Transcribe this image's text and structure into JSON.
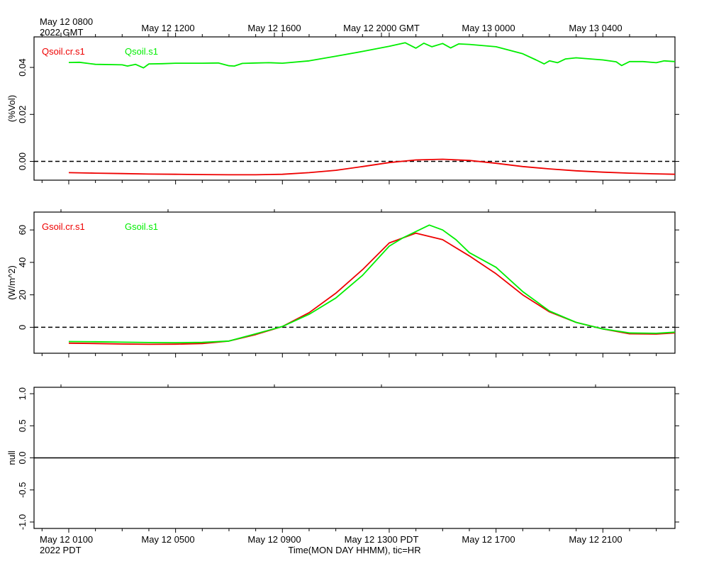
{
  "top_axis": {
    "first_label": "May 12 0800",
    "first_label_year": "2022 GMT",
    "labels": [
      "May 12 1200",
      "May 12 1600",
      "May 12 2000 GMT",
      "May 13 0000",
      "May 13 0400"
    ]
  },
  "bottom_axis": {
    "first_label": "May 12 0100",
    "first_label_year": "2022 PDT",
    "labels": [
      "May 12 0500",
      "May 12 0900",
      "May 12 1300 PDT",
      "May 12 1700",
      "May 12 2100"
    ],
    "title": "Time(MON DAY HHMM), tic=HR"
  },
  "colors": {
    "series_a": "#ee0000",
    "series_b": "#00ee00",
    "axis": "#000000",
    "background": "#ffffff"
  },
  "chart_data": [
    {
      "type": "line",
      "ylabel": "(%Vol)",
      "ylim": [
        -0.008,
        0.053
      ],
      "yticks": [
        0.0,
        0.02,
        0.04
      ],
      "ytick_labels": [
        "0.00",
        "0.02",
        "0.04"
      ],
      "xlim_hours_since_first_label": [
        -1.3,
        22.7
      ],
      "zero_line": true,
      "legend_position": "top-left",
      "series": [
        {
          "name": "Qsoil.cr.s1",
          "color": "#ee0000",
          "x": [
            0,
            1,
            2,
            3,
            4,
            5,
            6,
            7,
            8,
            9,
            10,
            11,
            12,
            13,
            14,
            15,
            16,
            17,
            18,
            19,
            20,
            21,
            22,
            22.7
          ],
          "y": [
            -0.0048,
            -0.005,
            -0.0052,
            -0.0054,
            -0.0055,
            -0.0056,
            -0.0057,
            -0.0057,
            -0.0055,
            -0.0048,
            -0.0038,
            -0.0022,
            -0.0005,
            0.0006,
            0.0009,
            0.0004,
            -0.0008,
            -0.0022,
            -0.0032,
            -0.004,
            -0.0046,
            -0.005,
            -0.0053,
            -0.0055
          ]
        },
        {
          "name": "Qsoil.s1",
          "color": "#00ee00",
          "x": [
            0,
            0.4,
            1,
            2,
            2.2,
            2.5,
            2.8,
            3,
            3.5,
            4,
            5,
            5.6,
            6,
            6.2,
            6.5,
            7,
            7.5,
            8,
            9,
            10,
            11,
            12,
            12.6,
            13,
            13.3,
            13.6,
            14,
            14.3,
            14.6,
            15,
            16,
            17,
            17.5,
            17.8,
            18,
            18.3,
            18.6,
            19,
            20,
            20.5,
            20.7,
            21,
            21.5,
            22,
            22.3,
            22.7
          ],
          "y": [
            0.0421,
            0.0422,
            0.0413,
            0.0411,
            0.0406,
            0.0413,
            0.0398,
            0.0415,
            0.0416,
            0.0418,
            0.0418,
            0.0419,
            0.0407,
            0.0406,
            0.0417,
            0.0419,
            0.042,
            0.0418,
            0.0428,
            0.0448,
            0.0468,
            0.049,
            0.0505,
            0.0482,
            0.0503,
            0.0488,
            0.0502,
            0.0483,
            0.05,
            0.0498,
            0.0488,
            0.0458,
            0.0432,
            0.0415,
            0.0428,
            0.042,
            0.0436,
            0.0441,
            0.0432,
            0.0424,
            0.0408,
            0.0425,
            0.0425,
            0.042,
            0.0428,
            0.0425
          ]
        }
      ]
    },
    {
      "type": "line",
      "ylabel": "(W/m^2)",
      "ylim": [
        -16,
        71
      ],
      "yticks": [
        0,
        20,
        40,
        60
      ],
      "ytick_labels": [
        "0",
        "20",
        "40",
        "60"
      ],
      "xlim_hours_since_first_label": [
        -1.3,
        22.7
      ],
      "zero_line": true,
      "legend_position": "top-left",
      "series": [
        {
          "name": "Gsoil.cr.s1",
          "color": "#ee0000",
          "x": [
            0,
            1,
            2,
            3,
            4,
            5,
            6,
            7,
            8,
            9,
            10,
            11,
            12,
            13,
            14,
            15,
            16,
            17,
            18,
            19,
            20,
            21,
            22,
            22.7
          ],
          "y": [
            -9.8,
            -10.0,
            -10.3,
            -10.5,
            -10.4,
            -10.0,
            -8.5,
            -4.5,
            0.5,
            9.0,
            21.0,
            35.5,
            52.0,
            58.0,
            54.0,
            44.0,
            33.0,
            20.0,
            9.5,
            3.0,
            -1.0,
            -4.0,
            -4.2,
            -3.5
          ]
        },
        {
          "name": "Gsoil.s1",
          "color": "#00ee00",
          "x": [
            0,
            1,
            2,
            3,
            4,
            5,
            6,
            7,
            8,
            9,
            10,
            11,
            12,
            12.5,
            13,
            13.5,
            14,
            14.5,
            15,
            16,
            17,
            18,
            19,
            20,
            21,
            22,
            22.7
          ],
          "y": [
            -8.8,
            -8.9,
            -9.2,
            -9.4,
            -9.5,
            -9.3,
            -8.5,
            -4.0,
            0.5,
            8.0,
            18.0,
            32.0,
            50.0,
            55.0,
            59.0,
            63.0,
            60.0,
            54.0,
            46.0,
            37.0,
            22.0,
            10.0,
            3.0,
            -1.0,
            -3.5,
            -3.7,
            -3.0
          ]
        }
      ]
    },
    {
      "type": "line",
      "ylabel": "null",
      "ylim": [
        -1.1,
        1.1
      ],
      "yticks": [
        -1.0,
        -0.5,
        0.0,
        0.5,
        1.0
      ],
      "ytick_labels": [
        "-1.0",
        "-0.5",
        "0.0",
        "0.5",
        "1.0"
      ],
      "xlim_hours_since_first_label": [
        -1.3,
        22.7
      ],
      "zero_line": true,
      "series": []
    }
  ]
}
